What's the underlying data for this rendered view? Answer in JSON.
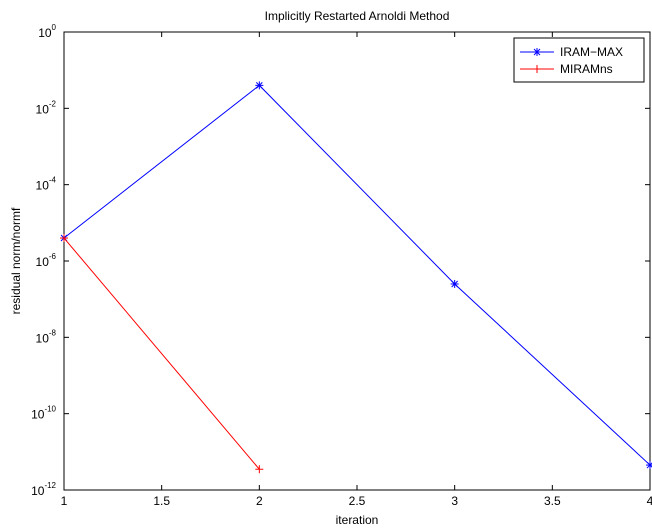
{
  "chart_data": {
    "type": "line",
    "title": "Implicitly Restarted Arnoldi Method",
    "xlabel": "iteration",
    "ylabel": "residual norm/normf",
    "yscale": "log",
    "xlim": [
      1,
      4
    ],
    "ylim": [
      1e-12,
      1
    ],
    "grid": false,
    "legend_position": "top-right",
    "x_ticks": [
      {
        "value": 1,
        "label": "1"
      },
      {
        "value": 1.5,
        "label": "1.5"
      },
      {
        "value": 2,
        "label": "2"
      },
      {
        "value": 2.5,
        "label": "2.5"
      },
      {
        "value": 3,
        "label": "3"
      },
      {
        "value": 3.5,
        "label": "3.5"
      },
      {
        "value": 4,
        "label": "4"
      }
    ],
    "y_ticks": [
      {
        "value": 1.0,
        "base": "10",
        "exp": "0"
      },
      {
        "value": 0.01,
        "base": "10",
        "exp": "-2"
      },
      {
        "value": 0.0001,
        "base": "10",
        "exp": "-4"
      },
      {
        "value": 1e-06,
        "base": "10",
        "exp": "-6"
      },
      {
        "value": 1e-08,
        "base": "10",
        "exp": "-8"
      },
      {
        "value": 1e-10,
        "base": "10",
        "exp": "-10"
      },
      {
        "value": 1e-12,
        "base": "10",
        "exp": "-12"
      }
    ],
    "series": [
      {
        "name": "IRAM−MAX",
        "color": "#0000ff",
        "marker": "asterisk",
        "x": [
          1,
          2,
          3,
          4
        ],
        "y": [
          4e-06,
          0.04,
          2.5e-07,
          4.5e-12
        ]
      },
      {
        "name": "MIRAMns",
        "color": "#ff0000",
        "marker": "plus",
        "x": [
          1,
          2
        ],
        "y": [
          4e-06,
          3.5e-12
        ]
      }
    ]
  }
}
